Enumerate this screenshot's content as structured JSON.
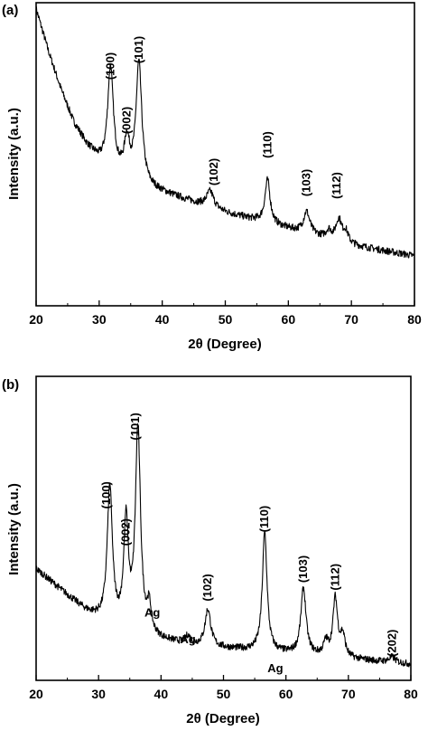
{
  "figure": {
    "panels": [
      {
        "panel_label": "(a)",
        "xlabel": "2θ (Degree)",
        "ylabel": "Intensity (a.u.)"
      },
      {
        "panel_label": "(b)",
        "xlabel": "2θ (Degree)",
        "ylabel": "Intensity (a.u.)"
      }
    ]
  },
  "chart_data": [
    {
      "type": "line",
      "title": "",
      "panel_label": "(a)",
      "xlabel": "2θ (Degree)",
      "ylabel": "Intensity (a.u.)",
      "xlim": [
        20,
        80
      ],
      "xticks": [
        20,
        30,
        40,
        50,
        60,
        70,
        80
      ],
      "ylim": [
        0,
        100
      ],
      "y_ticks_shown": false,
      "grid": false,
      "baseline": [
        [
          20,
          100
        ],
        [
          22,
          84
        ],
        [
          24,
          70
        ],
        [
          26,
          58
        ],
        [
          28,
          50
        ],
        [
          30,
          44
        ],
        [
          32,
          40
        ],
        [
          35,
          37
        ],
        [
          38,
          34
        ],
        [
          42,
          31
        ],
        [
          46,
          28
        ],
        [
          50,
          25
        ],
        [
          55,
          22
        ],
        [
          60,
          19
        ],
        [
          65,
          16
        ],
        [
          70,
          13
        ],
        [
          75,
          11
        ],
        [
          80,
          9
        ]
      ],
      "peaks": [
        {
          "x": 31.8,
          "height": 38,
          "width": 0.55
        },
        {
          "x": 34.4,
          "height": 13,
          "width": 0.5
        },
        {
          "x": 36.3,
          "height": 44,
          "width": 0.55
        },
        {
          "x": 47.6,
          "height": 6,
          "width": 0.7
        },
        {
          "x": 56.7,
          "height": 16,
          "width": 0.5
        },
        {
          "x": 62.9,
          "height": 8,
          "width": 0.6
        },
        {
          "x": 66.4,
          "height": 3,
          "width": 0.5
        },
        {
          "x": 68.0,
          "height": 8,
          "width": 0.55
        },
        {
          "x": 69.1,
          "height": 4,
          "width": 0.5
        }
      ],
      "annotations": [
        {
          "text": "(100)",
          "x": 31.8,
          "y": 79,
          "rotated": true
        },
        {
          "text": "(002)",
          "x": 34.4,
          "y": 59,
          "rotated": true
        },
        {
          "text": "(101)",
          "x": 36.3,
          "y": 85,
          "rotated": true
        },
        {
          "text": "(102)",
          "x": 48.2,
          "y": 40,
          "rotated": true
        },
        {
          "text": "(110)",
          "x": 56.7,
          "y": 50,
          "rotated": true
        },
        {
          "text": "(103)",
          "x": 62.9,
          "y": 36,
          "rotated": true
        },
        {
          "text": "(112)",
          "x": 67.7,
          "y": 35,
          "rotated": true
        }
      ]
    },
    {
      "type": "line",
      "title": "",
      "panel_label": "(b)",
      "xlabel": "2θ (Degree)",
      "ylabel": "Intensity (a.u.)",
      "xlim": [
        20,
        80
      ],
      "xticks": [
        20,
        30,
        40,
        50,
        60,
        70,
        80
      ],
      "ylim": [
        0,
        100
      ],
      "y_ticks_shown": false,
      "grid": false,
      "baseline": [
        [
          20,
          38
        ],
        [
          24,
          30
        ],
        [
          28,
          22
        ],
        [
          30,
          19
        ],
        [
          32,
          16
        ],
        [
          36,
          13
        ],
        [
          40,
          11
        ],
        [
          45,
          9
        ],
        [
          50,
          8
        ],
        [
          55,
          7
        ],
        [
          60,
          6
        ],
        [
          65,
          5
        ],
        [
          70,
          4
        ],
        [
          75,
          3
        ],
        [
          80,
          2
        ]
      ],
      "peaks": [
        {
          "x": 31.8,
          "height": 52,
          "width": 0.5
        },
        {
          "x": 34.4,
          "height": 40,
          "width": 0.45
        },
        {
          "x": 36.3,
          "height": 77,
          "width": 0.5
        },
        {
          "x": 38.1,
          "height": 10,
          "width": 0.4
        },
        {
          "x": 44.3,
          "height": 3,
          "width": 0.5
        },
        {
          "x": 47.5,
          "height": 14,
          "width": 0.55
        },
        {
          "x": 56.6,
          "height": 45,
          "width": 0.45
        },
        {
          "x": 62.8,
          "height": 25,
          "width": 0.5
        },
        {
          "x": 66.4,
          "height": 5,
          "width": 0.45
        },
        {
          "x": 67.9,
          "height": 22,
          "width": 0.45
        },
        {
          "x": 69.1,
          "height": 8,
          "width": 0.45
        },
        {
          "x": 77.0,
          "height": 2,
          "width": 0.6
        }
      ],
      "annotations": [
        {
          "text": "(100)",
          "x": 31.3,
          "y": 66,
          "rotated": true
        },
        {
          "text": "(002)",
          "x": 34.4,
          "y": 52,
          "rotated": true
        },
        {
          "text": "(101)",
          "x": 35.9,
          "y": 92,
          "rotated": true
        },
        {
          "text": "Ag",
          "x": 38.6,
          "y": 20,
          "rotated": false
        },
        {
          "text": "Ag",
          "x": 44.3,
          "y": 10,
          "rotated": false
        },
        {
          "text": "(102)",
          "x": 47.5,
          "y": 31,
          "rotated": true
        },
        {
          "text": "Ag",
          "x": 58.3,
          "y": -1,
          "rotated": false
        },
        {
          "text": "(110)",
          "x": 56.6,
          "y": 57,
          "rotated": true
        },
        {
          "text": "(103)",
          "x": 62.8,
          "y": 38,
          "rotated": true
        },
        {
          "text": "(112)",
          "x": 67.9,
          "y": 35,
          "rotated": true
        },
        {
          "text": "(202)",
          "x": 77.0,
          "y": 10,
          "rotated": true
        }
      ]
    }
  ]
}
